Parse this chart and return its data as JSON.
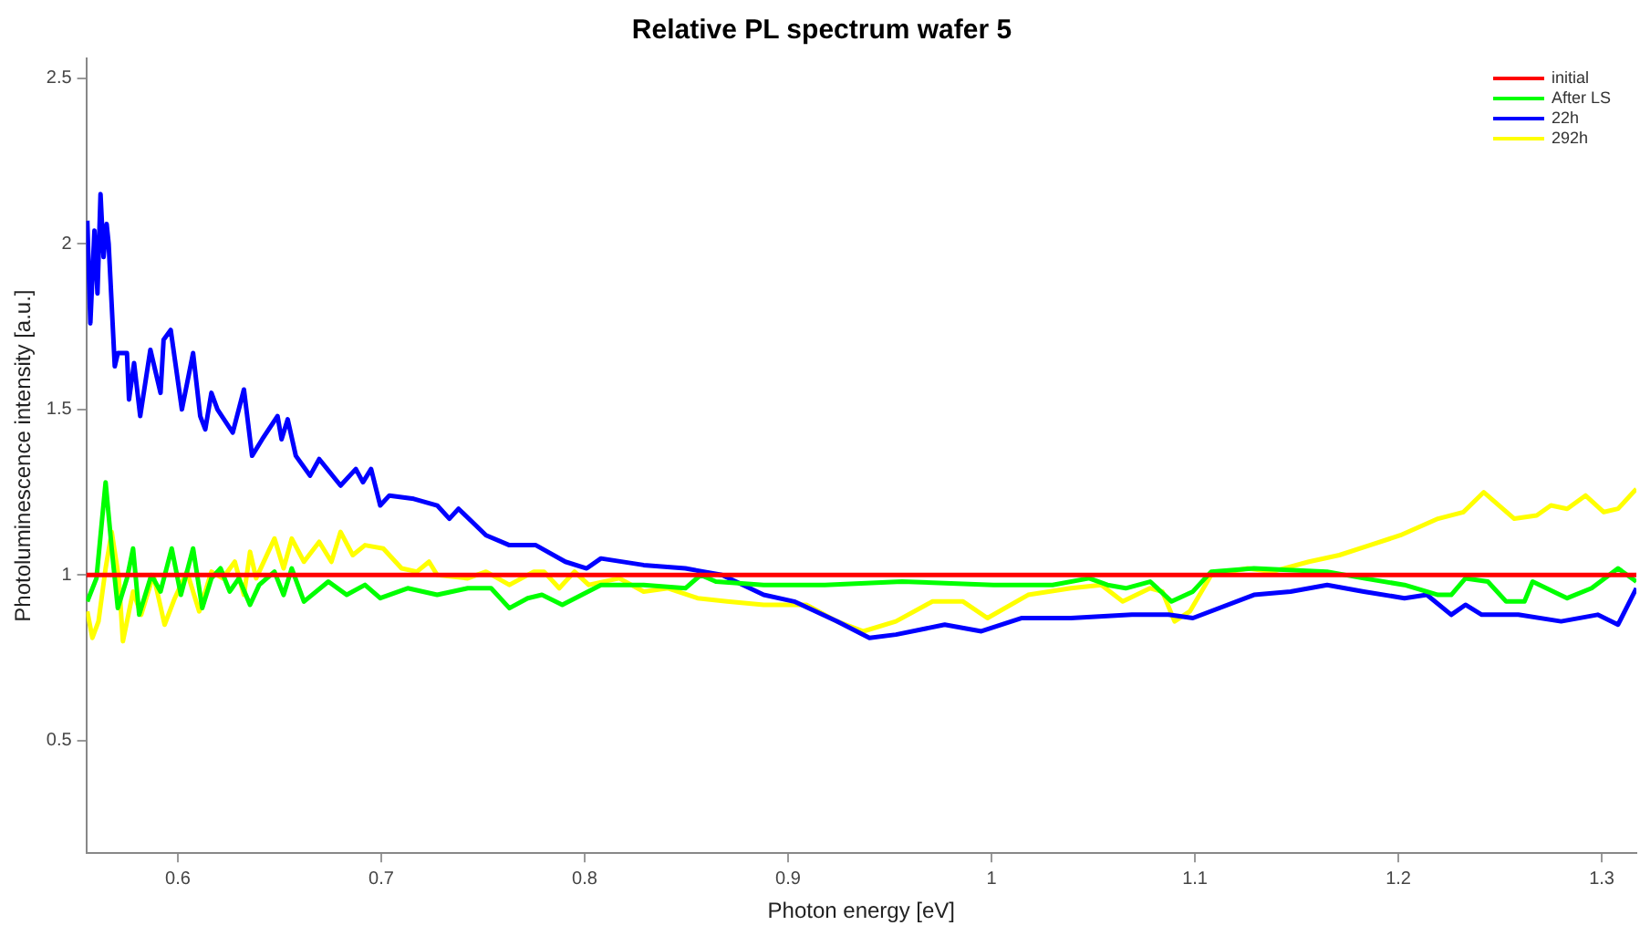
{
  "chart_data": {
    "type": "line",
    "title": "Relative PL spectrum wafer 5",
    "xlabel": "Photon energy [eV]",
    "ylabel": "Photoluminescence intensity [a.u.]",
    "xlim": [
      0.555,
      1.317
    ],
    "xticks": [
      0.6,
      0.7,
      0.8,
      0.9,
      1,
      1.1,
      1.2,
      1.3
    ],
    "ylim": [
      0.16,
      2.56
    ],
    "yticks": [
      0.5,
      1,
      1.5,
      2,
      2.5
    ],
    "grid": false,
    "legend": "top right",
    "marker": "none",
    "line_style": "solid",
    "series": [
      {
        "name": "initial",
        "color": "#ff0000",
        "x": [
          0.555,
          1.317
        ],
        "values": [
          1,
          1
        ]
      },
      {
        "name": "After LS",
        "color": "#00ff00",
        "x": [
          0.5555,
          0.56,
          0.5645,
          0.5675,
          0.5705,
          0.575,
          0.578,
          0.581,
          0.587,
          0.5915,
          0.597,
          0.6015,
          0.6075,
          0.612,
          0.6165,
          0.621,
          0.6255,
          0.63,
          0.6355,
          0.64,
          0.6475,
          0.652,
          0.656,
          0.662,
          0.674,
          0.683,
          0.692,
          0.6995,
          0.713,
          0.7275,
          0.7425,
          0.754,
          0.763,
          0.772,
          0.779,
          0.789,
          0.808,
          0.829,
          0.8495,
          0.857,
          0.8645,
          0.888,
          0.918,
          0.956,
          1.001,
          1.03,
          1.048,
          1.057,
          1.066,
          1.078,
          1.0885,
          1.099,
          1.108,
          1.129,
          1.165,
          1.183,
          1.203,
          1.2195,
          1.226,
          1.233,
          1.244,
          1.253,
          1.262,
          1.266,
          1.283,
          1.295,
          1.308,
          1.317
        ],
        "values": [
          0.92,
          0.99,
          1.28,
          1.08,
          0.9,
          0.99,
          1.08,
          0.88,
          1,
          0.95,
          1.08,
          0.94,
          1.08,
          0.9,
          0.99,
          1.02,
          0.95,
          0.99,
          0.91,
          0.97,
          1.01,
          0.94,
          1.02,
          0.92,
          0.98,
          0.94,
          0.97,
          0.93,
          0.96,
          0.94,
          0.96,
          0.96,
          0.9,
          0.93,
          0.94,
          0.91,
          0.97,
          0.97,
          0.96,
          1,
          0.98,
          0.97,
          0.97,
          0.98,
          0.97,
          0.97,
          0.99,
          0.97,
          0.96,
          0.98,
          0.92,
          0.95,
          1.01,
          1.02,
          1.01,
          0.99,
          0.97,
          0.94,
          0.94,
          0.99,
          0.98,
          0.92,
          0.92,
          0.98,
          0.93,
          0.96,
          1.02,
          0.98
        ]
      },
      {
        "name": "22h",
        "color": "#0000ff",
        "x": [
          0.5555,
          0.557,
          0.559,
          0.5605,
          0.562,
          0.5635,
          0.565,
          0.566,
          0.569,
          0.5705,
          0.575,
          0.576,
          0.5785,
          0.5815,
          0.5865,
          0.5915,
          0.593,
          0.5965,
          0.602,
          0.6075,
          0.611,
          0.6135,
          0.6165,
          0.6195,
          0.627,
          0.6325,
          0.6365,
          0.6415,
          0.649,
          0.651,
          0.654,
          0.658,
          0.665,
          0.6695,
          0.68,
          0.6875,
          0.691,
          0.695,
          0.6995,
          0.704,
          0.716,
          0.7275,
          0.7335,
          0.738,
          0.7515,
          0.763,
          0.776,
          0.7905,
          0.801,
          0.808,
          0.829,
          0.8495,
          0.8675,
          0.888,
          0.903,
          0.924,
          0.94,
          0.953,
          0.977,
          0.995,
          1.015,
          1.039,
          1.069,
          1.087,
          1.099,
          1.129,
          1.147,
          1.165,
          1.183,
          1.203,
          1.214,
          1.226,
          1.233,
          1.241,
          1.259,
          1.28,
          1.298,
          1.308,
          1.317
        ],
        "values": [
          2.07,
          1.76,
          2.04,
          1.85,
          2.15,
          1.96,
          2.06,
          2,
          1.63,
          1.67,
          1.67,
          1.53,
          1.64,
          1.48,
          1.68,
          1.55,
          1.71,
          1.74,
          1.5,
          1.67,
          1.48,
          1.44,
          1.55,
          1.5,
          1.43,
          1.56,
          1.36,
          1.41,
          1.48,
          1.41,
          1.47,
          1.36,
          1.3,
          1.35,
          1.27,
          1.32,
          1.28,
          1.32,
          1.21,
          1.24,
          1.23,
          1.21,
          1.17,
          1.2,
          1.12,
          1.09,
          1.09,
          1.04,
          1.02,
          1.05,
          1.03,
          1.02,
          1,
          0.94,
          0.92,
          0.86,
          0.81,
          0.82,
          0.85,
          0.83,
          0.87,
          0.87,
          0.88,
          0.88,
          0.87,
          0.94,
          0.95,
          0.97,
          0.95,
          0.93,
          0.94,
          0.88,
          0.91,
          0.88,
          0.88,
          0.86,
          0.88,
          0.85,
          0.96
        ]
      },
      {
        "name": "292h",
        "color": "#ffff00",
        "x": [
          0.5555,
          0.558,
          0.561,
          0.5645,
          0.5675,
          0.571,
          0.573,
          0.578,
          0.582,
          0.588,
          0.5935,
          0.5985,
          0.6045,
          0.6105,
          0.6165,
          0.622,
          0.628,
          0.6325,
          0.6355,
          0.6385,
          0.6475,
          0.652,
          0.656,
          0.662,
          0.6695,
          0.6755,
          0.68,
          0.686,
          0.692,
          0.701,
          0.71,
          0.7175,
          0.7235,
          0.7275,
          0.7425,
          0.7515,
          0.763,
          0.775,
          0.78,
          0.7875,
          0.795,
          0.802,
          0.817,
          0.829,
          0.841,
          0.8555,
          0.87,
          0.888,
          0.909,
          0.924,
          0.937,
          0.953,
          0.971,
          0.986,
          0.998,
          1.018,
          1.039,
          1.054,
          1.0645,
          1.078,
          1.084,
          1.09,
          1.0975,
          1.108,
          1.126,
          1.138,
          1.156,
          1.171,
          1.186,
          1.201,
          1.2195,
          1.232,
          1.242,
          1.257,
          1.268,
          1.275,
          1.283,
          1.292,
          1.301,
          1.308,
          1.317
        ],
        "values": [
          0.89,
          0.81,
          0.86,
          1.02,
          1.13,
          0.99,
          0.8,
          0.95,
          0.88,
          1,
          0.85,
          0.93,
          1.01,
          0.89,
          1.01,
          0.99,
          1.04,
          0.94,
          1.07,
          0.99,
          1.11,
          1.02,
          1.11,
          1.04,
          1.1,
          1.04,
          1.13,
          1.06,
          1.09,
          1.08,
          1.02,
          1.01,
          1.04,
          1,
          0.99,
          1.01,
          0.97,
          1.01,
          1.01,
          0.96,
          1.01,
          0.97,
          0.99,
          0.95,
          0.96,
          0.93,
          0.92,
          0.91,
          0.91,
          0.86,
          0.83,
          0.86,
          0.92,
          0.92,
          0.87,
          0.94,
          0.96,
          0.97,
          0.92,
          0.96,
          0.95,
          0.86,
          0.89,
          1,
          1.02,
          1.01,
          1.04,
          1.06,
          1.09,
          1.12,
          1.17,
          1.19,
          1.25,
          1.17,
          1.18,
          1.21,
          1.2,
          1.24,
          1.19,
          1.2,
          1.26
        ]
      }
    ]
  }
}
